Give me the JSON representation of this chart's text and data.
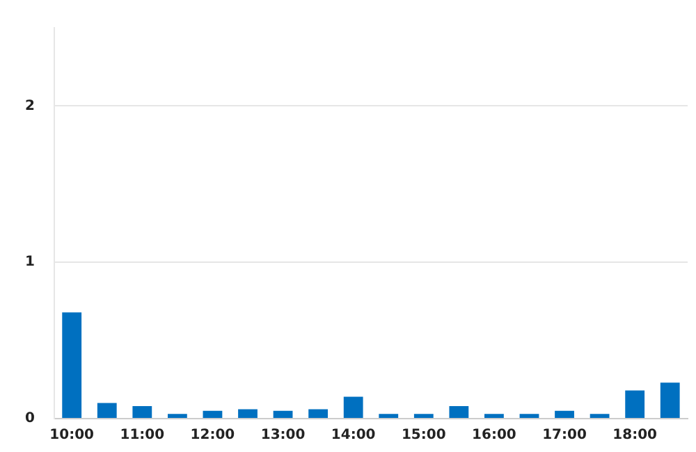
{
  "chart_data": {
    "type": "bar",
    "categories": [
      "10:00",
      null,
      "11:00",
      null,
      "12:00",
      null,
      "13:00",
      null,
      "14:00",
      null,
      "15:00",
      null,
      "16:00",
      null,
      "17:00",
      null,
      "18:00",
      null
    ],
    "values": [
      0.68,
      0.1,
      0.08,
      0.03,
      0.05,
      0.06,
      0.05,
      0.06,
      0.14,
      0.03,
      0.03,
      0.08,
      0.03,
      0.03,
      0.05,
      0.03,
      0.18,
      0.23
    ],
    "color": "#0070c0",
    "ylim": [
      0,
      2.5
    ],
    "yticks": [
      0,
      1,
      2
    ],
    "grid": "y"
  }
}
